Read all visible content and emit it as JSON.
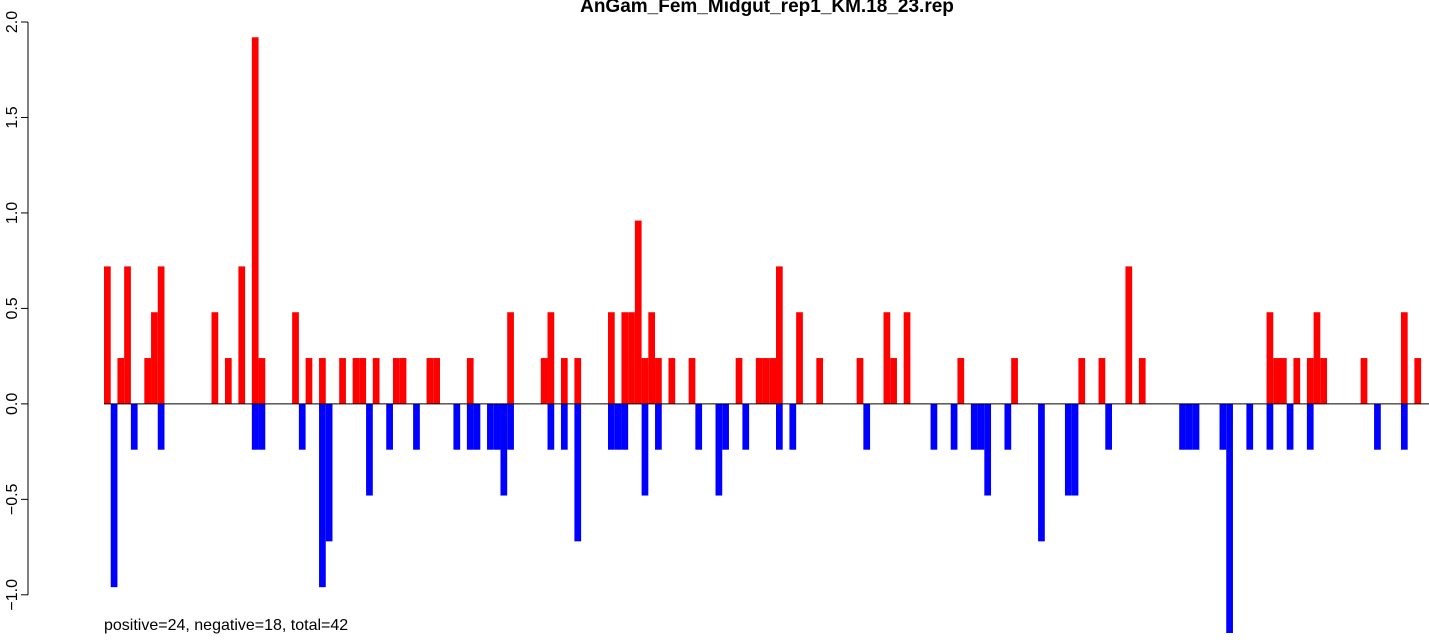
{
  "chart_data": {
    "type": "bar",
    "title": "AnGam_Fem_Midgut_rep1_KM.18_23.rep",
    "subtitle": "positive=24, negative=18, total=42",
    "ylim": [
      -1.2,
      2.0
    ],
    "yticks": [
      {
        "value": -1,
        "label": "−1.0"
      },
      {
        "value": -0.5,
        "label": "−0.5"
      },
      {
        "value": 0,
        "label": "0.0"
      },
      {
        "value": 0.5,
        "label": "0.5"
      },
      {
        "value": 1,
        "label": "1.0"
      },
      {
        "value": 1.5,
        "label": "1.5"
      },
      {
        "value": 2,
        "label": "2.0"
      }
    ],
    "series": [
      {
        "color": "#ff0000",
        "values": [
          0.72,
          0,
          0.24,
          0.72,
          0,
          0,
          0.24,
          0.48,
          0.72,
          0,
          0,
          0,
          0,
          0,
          0,
          0,
          0.48,
          0,
          0.24,
          0,
          0.72,
          0,
          1.92,
          0.24,
          0,
          0,
          0,
          0,
          0.48,
          0,
          0.24,
          0,
          0.24,
          0,
          0,
          0.24,
          0,
          0.24,
          0.24,
          0,
          0.24,
          0,
          0,
          0.24,
          0.24,
          0,
          0,
          0,
          0.24,
          0.24,
          0,
          0,
          0,
          0,
          0.24,
          0,
          0,
          0,
          0,
          0,
          0.48,
          0,
          0,
          0,
          0,
          0.24,
          0.48,
          0,
          0.24,
          0,
          0.24,
          0,
          0,
          0,
          0,
          0.48,
          0,
          0.48,
          0.48,
          0.96,
          0.24,
          0.48,
          0.24,
          0,
          0.24,
          0,
          0,
          0.24,
          0,
          0,
          0,
          0,
          0,
          0,
          0.24,
          0,
          0,
          0.24,
          0.24,
          0.24,
          0.72,
          0,
          0,
          0.48,
          0,
          0,
          0.24,
          0,
          0,
          0,
          0,
          0,
          0.24,
          0,
          0,
          0,
          0.48,
          0.24,
          0,
          0.48,
          0,
          0,
          0,
          0,
          0,
          0,
          0,
          0.24,
          0,
          0,
          0,
          0,
          0,
          0,
          0,
          0.24,
          0,
          0,
          0,
          0,
          0,
          0,
          0,
          0,
          0,
          0.24,
          0,
          0,
          0.24,
          0,
          0,
          0,
          0.72,
          0,
          0.24,
          0,
          0,
          0,
          0,
          0,
          0,
          0,
          0,
          0,
          0,
          0,
          0,
          0,
          0,
          0,
          0,
          0,
          0,
          0.48,
          0.24,
          0.24,
          0,
          0.24,
          0,
          0.24,
          0.48,
          0.24,
          0,
          0,
          0,
          0,
          0,
          0.24,
          0,
          0,
          0,
          0,
          0,
          0.48,
          0,
          0.24
        ]
      },
      {
        "color": "#0000ff",
        "values": [
          0,
          -0.96,
          0,
          0,
          -0.24,
          0,
          0,
          0,
          -0.24,
          0,
          0,
          0,
          0,
          0,
          0,
          0,
          0,
          0,
          0,
          0,
          0,
          0,
          -0.24,
          -0.24,
          0,
          0,
          0,
          0,
          0,
          -0.24,
          0,
          0,
          -0.96,
          -0.72,
          0,
          0,
          0,
          0,
          0,
          -0.48,
          0,
          0,
          -0.24,
          0,
          0,
          0,
          -0.24,
          0,
          0,
          0,
          0,
          0,
          -0.24,
          0,
          -0.24,
          -0.24,
          0,
          -0.24,
          -0.24,
          -0.48,
          -0.24,
          0,
          0,
          0,
          0,
          0,
          -0.24,
          0,
          -0.24,
          0,
          -0.72,
          0,
          0,
          0,
          0,
          -0.24,
          -0.24,
          -0.24,
          0,
          0,
          -0.48,
          0,
          -0.24,
          0,
          0,
          0,
          0,
          0,
          -0.24,
          0,
          0,
          -0.48,
          -0.24,
          0,
          0,
          -0.24,
          0,
          0,
          0,
          0,
          -0.24,
          0,
          -0.24,
          0,
          0,
          0,
          0,
          0,
          0,
          0,
          0,
          0,
          0,
          -0.24,
          0,
          0,
          0,
          0,
          0,
          0,
          0,
          0,
          0,
          -0.24,
          0,
          0,
          -0.24,
          0,
          0,
          -0.24,
          -0.24,
          -0.48,
          0,
          0,
          -0.24,
          0,
          0,
          0,
          0,
          -0.72,
          0,
          0,
          0,
          -0.48,
          -0.48,
          0,
          0,
          0,
          0,
          -0.24,
          0,
          0,
          0,
          0,
          0,
          0,
          0,
          0,
          0,
          0,
          -0.24,
          -0.24,
          -0.24,
          0,
          0,
          0,
          -0.24,
          -1.2,
          0,
          0,
          -0.24,
          0,
          0,
          -0.24,
          0,
          0,
          -0.24,
          0,
          0,
          -0.24,
          0,
          0,
          0,
          0,
          0,
          0,
          0,
          0,
          0,
          -0.24,
          0,
          0,
          0,
          -0.24,
          0,
          0
        ]
      }
    ]
  }
}
